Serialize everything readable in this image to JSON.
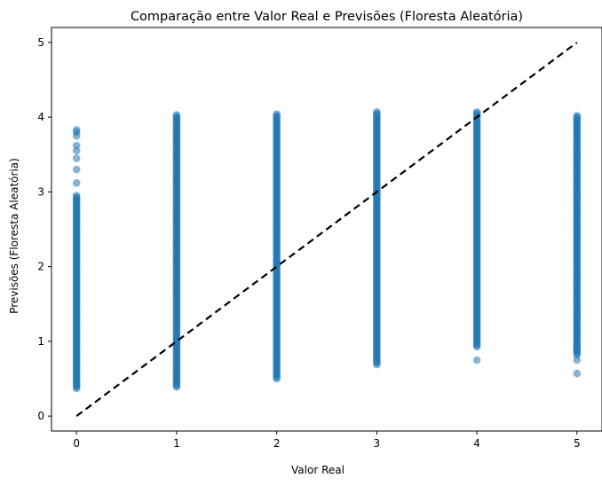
{
  "chart_data": {
    "type": "scatter",
    "title": "Comparação entre Valor Real e Previsões (Floresta Aleatória)",
    "xlabel": "Valor Real",
    "ylabel": "Previsões (Floresta Aleatória)",
    "xlim": [
      -0.25,
      5.25
    ],
    "ylim": [
      -0.2,
      5.2
    ],
    "xticks": [
      "0",
      "1",
      "2",
      "3",
      "4",
      "5"
    ],
    "yticks": [
      "0",
      "1",
      "2",
      "3",
      "4",
      "5"
    ],
    "grid": false,
    "legend": "none",
    "colors": {
      "points": "#1f77b4",
      "reference_line": "#000000"
    },
    "point_alpha": 0.55,
    "reference_line": {
      "style": "dashed",
      "x": [
        0,
        5
      ],
      "y": [
        0,
        5
      ]
    },
    "series": [
      {
        "x": 0,
        "y_min": 0.37,
        "y_max": 2.95,
        "extra_y": [
          3.12,
          3.3,
          3.45,
          3.55,
          3.62,
          3.75,
          3.8,
          3.83
        ]
      },
      {
        "x": 1,
        "y_min": 0.39,
        "y_max": 4.03,
        "extra_y": []
      },
      {
        "x": 2,
        "y_min": 0.5,
        "y_max": 4.05,
        "extra_y": []
      },
      {
        "x": 3,
        "y_min": 0.69,
        "y_max": 4.07,
        "extra_y": []
      },
      {
        "x": 4,
        "y_min": 0.93,
        "y_max": 4.07,
        "extra_y": [
          0.75
        ]
      },
      {
        "x": 5,
        "y_min": 0.82,
        "y_max": 4.02,
        "extra_y": [
          0.57,
          0.75,
          0.92
        ]
      }
    ]
  }
}
